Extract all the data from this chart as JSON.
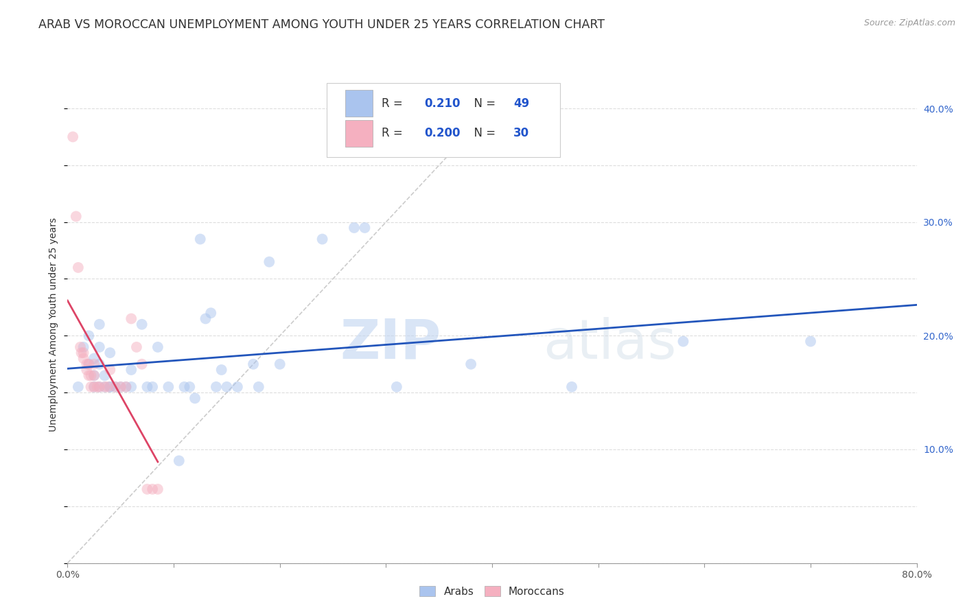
{
  "title": "ARAB VS MOROCCAN UNEMPLOYMENT AMONG YOUTH UNDER 25 YEARS CORRELATION CHART",
  "source": "Source: ZipAtlas.com",
  "ylabel": "Unemployment Among Youth under 25 years",
  "watermark_zip": "ZIP",
  "watermark_atlas": "atlas",
  "xlim": [
    0.0,
    0.8
  ],
  "ylim": [
    -0.02,
    0.42
  ],
  "plot_ylim": [
    0.0,
    0.42
  ],
  "xtick_positions": [
    0.0,
    0.1,
    0.2,
    0.3,
    0.4,
    0.5,
    0.6,
    0.7,
    0.8
  ],
  "ytick_positions": [
    0.0,
    0.1,
    0.2,
    0.3,
    0.4
  ],
  "arab_R": "0.210",
  "arab_N": "49",
  "moroccan_R": "0.200",
  "moroccan_N": "30",
  "arab_color": "#aac4ee",
  "moroccan_color": "#f5b0c0",
  "arab_line_color": "#2255bb",
  "moroccan_line_color": "#dd4466",
  "diagonal_color": "#cccccc",
  "arab_scatter": [
    [
      0.01,
      0.155
    ],
    [
      0.015,
      0.19
    ],
    [
      0.02,
      0.175
    ],
    [
      0.02,
      0.2
    ],
    [
      0.025,
      0.165
    ],
    [
      0.025,
      0.155
    ],
    [
      0.025,
      0.18
    ],
    [
      0.03,
      0.155
    ],
    [
      0.03,
      0.175
    ],
    [
      0.03,
      0.21
    ],
    [
      0.03,
      0.19
    ],
    [
      0.035,
      0.155
    ],
    [
      0.035,
      0.165
    ],
    [
      0.04,
      0.155
    ],
    [
      0.04,
      0.185
    ],
    [
      0.04,
      0.155
    ],
    [
      0.045,
      0.155
    ],
    [
      0.05,
      0.155
    ],
    [
      0.055,
      0.155
    ],
    [
      0.06,
      0.155
    ],
    [
      0.06,
      0.17
    ],
    [
      0.07,
      0.21
    ],
    [
      0.075,
      0.155
    ],
    [
      0.08,
      0.155
    ],
    [
      0.085,
      0.19
    ],
    [
      0.095,
      0.155
    ],
    [
      0.105,
      0.09
    ],
    [
      0.11,
      0.155
    ],
    [
      0.115,
      0.155
    ],
    [
      0.12,
      0.145
    ],
    [
      0.125,
      0.285
    ],
    [
      0.13,
      0.215
    ],
    [
      0.135,
      0.22
    ],
    [
      0.14,
      0.155
    ],
    [
      0.145,
      0.17
    ],
    [
      0.15,
      0.155
    ],
    [
      0.16,
      0.155
    ],
    [
      0.175,
      0.175
    ],
    [
      0.18,
      0.155
    ],
    [
      0.19,
      0.265
    ],
    [
      0.2,
      0.175
    ],
    [
      0.24,
      0.285
    ],
    [
      0.27,
      0.295
    ],
    [
      0.28,
      0.295
    ],
    [
      0.31,
      0.155
    ],
    [
      0.38,
      0.175
    ],
    [
      0.475,
      0.155
    ],
    [
      0.58,
      0.195
    ],
    [
      0.7,
      0.195
    ]
  ],
  "moroccan_scatter": [
    [
      0.005,
      0.375
    ],
    [
      0.008,
      0.305
    ],
    [
      0.01,
      0.26
    ],
    [
      0.012,
      0.19
    ],
    [
      0.013,
      0.185
    ],
    [
      0.015,
      0.185
    ],
    [
      0.015,
      0.18
    ],
    [
      0.018,
      0.175
    ],
    [
      0.018,
      0.17
    ],
    [
      0.02,
      0.165
    ],
    [
      0.02,
      0.175
    ],
    [
      0.022,
      0.165
    ],
    [
      0.022,
      0.155
    ],
    [
      0.025,
      0.175
    ],
    [
      0.025,
      0.165
    ],
    [
      0.025,
      0.155
    ],
    [
      0.028,
      0.155
    ],
    [
      0.03,
      0.155
    ],
    [
      0.035,
      0.155
    ],
    [
      0.038,
      0.155
    ],
    [
      0.04,
      0.17
    ],
    [
      0.045,
      0.155
    ],
    [
      0.05,
      0.155
    ],
    [
      0.055,
      0.155
    ],
    [
      0.06,
      0.215
    ],
    [
      0.065,
      0.19
    ],
    [
      0.07,
      0.175
    ],
    [
      0.075,
      0.065
    ],
    [
      0.08,
      0.065
    ],
    [
      0.085,
      0.065
    ]
  ],
  "background_color": "#ffffff",
  "grid_color": "#dddddd",
  "title_fontsize": 12.5,
  "source_fontsize": 9,
  "axis_label_fontsize": 10,
  "tick_fontsize": 10,
  "scatter_size": 130,
  "scatter_alpha": 0.5
}
